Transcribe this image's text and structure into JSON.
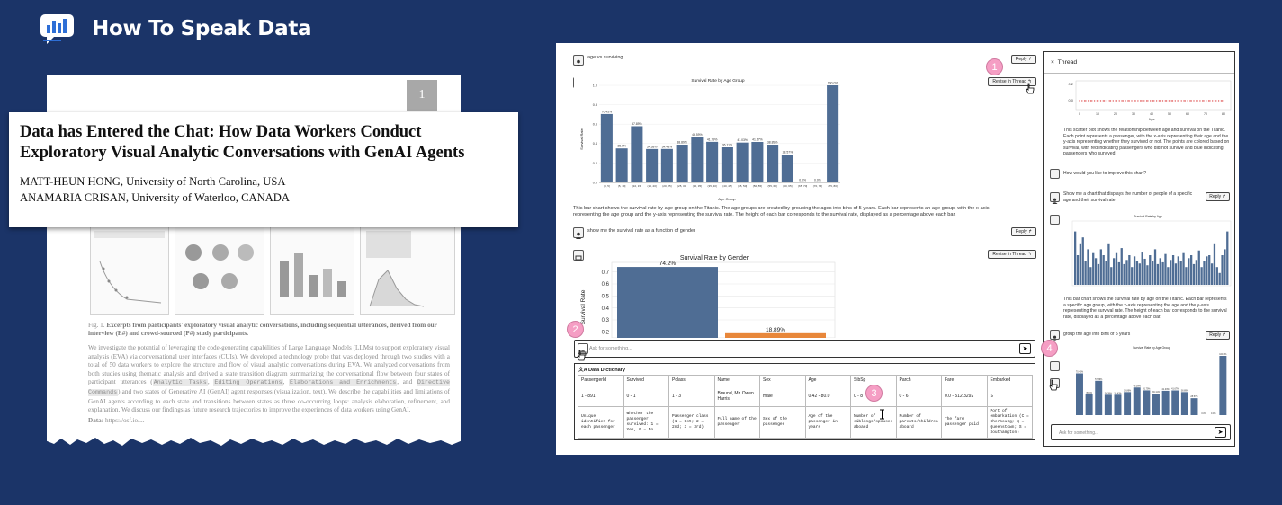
{
  "brand": {
    "title": "How To Speak Data"
  },
  "paper": {
    "page_number": "1",
    "title": "Data has Entered the Chat: How Data Workers Conduct Exploratory Visual Analytic Conversations with GenAI Agents",
    "author1_name": "MATT-HEUN HONG,",
    "author1_aff": " University of North Carolina, USA",
    "author2_name": "ANAMARIA CRISAN,",
    "author2_aff": " University of Waterloo, CANADA",
    "fig_label": "Fig. 1.",
    "fig_caption_bold": "Excerpts from participants' exploratory visual analytic conversations, including sequential utterances, derived from our interview (E#) and crowd-sourced (P#) study participants.",
    "abstract_1": "We investigate the potential of leveraging the code-generating capabilities of Large Language Models (LLMs) to support exploratory visual analysis (EVA) via conversational user interfaces (CUIs). We developed a technology probe that was deployed through two studies with a total of 50 data workers to explore the structure and flow of visual analytic conversations during EVA. We analyzed conversations from both studies using thematic analysis and derived a state transition diagram summarizing the conversational flow between four states of participant utterances (",
    "code1": "Analytic Tasks",
    "code2": "Editing Operations",
    "code3": "Elaborations and Enrichments",
    "abstract_and": ", and",
    "code4": "Directive Commands",
    "abstract_2": ") and two states of Generative AI (GenAI) agent responses (visualization, text). We describe the capabilities and limitations of GenAI agents according to each state and transitions between states as three co-occurring loops: analysis elaboration, refinement, and explanation. We discuss our findings as future research trajectories to improve the experiences of data workers using GenAI.",
    "data_line_label": "Data:",
    "data_line_value": " https://osf.io/..."
  },
  "app": {
    "msg1": "age vs surviving",
    "reply_label": "Reply",
    "revise_label": "Revise in Thread",
    "chart1_title": "Survival Rate by Age Group",
    "chart1_ylabel": "Survival Rate",
    "chart1_xlabel": "Age Group",
    "desc1": "This bar chart shows the survival rate by age group on the Titanic. The age groups are created by grouping the ages into bins of 5 years. Each bar represents an age group, with the x-axis representing the age group and the y-axis representing the survival rate. The height of each bar corresponds to the survival rate, displayed as a percentage above each bar.",
    "msg2": "show me the survival rate as a function of gender",
    "chart2_title": "Survival Rate by Gender",
    "chart2_ylabel": "Survival Rate",
    "input_placeholder": "Ask for something...",
    "send_icon": "send-arrow",
    "dd_title": "Data Dictionary",
    "dd_headers": [
      "PassengerId",
      "Survived",
      "Pclass",
      "Name",
      "Sex",
      "Age",
      "SibSp",
      "Parch",
      "Fare",
      "Embarked"
    ],
    "dd_ranges": [
      "1 - 891",
      "0 - 1",
      "1 - 3",
      "Braund, Mr. Owen Harris",
      "male",
      "0.42 - 80.0",
      "0 - 8",
      "0 - 6",
      "0.0 - 512.3292",
      "S"
    ],
    "dd_descriptions": [
      "Unique identifier for each passenger",
      "Whether the passenger survived: 1 = Yes, 0 = No",
      "Passenger class (1 = 1st; 2 = 2nd; 3 = 3rd)",
      "Full name of the passenger",
      "Sex of the passenger",
      "Age of the passenger in years",
      "Number of siblings/spouses aboard",
      "Number of parents/children aboard",
      "The fare passenger paid",
      "Port of embarkation (C = Cherbourg; Q = Queenstown; S = Southampton)"
    ]
  },
  "thread": {
    "title": "Thread",
    "close_label": "×",
    "scatter_xlabel": "Age",
    "scatter_yticks": [
      "0.2",
      "0.0"
    ],
    "scatter_xticks": [
      "0",
      "10",
      "20",
      "30",
      "40",
      "50",
      "60",
      "70",
      "80"
    ],
    "desc1": "This scatter plot shows the relationship between age and survival on the Titanic. Each point represents a passenger, with the x-axis representing their age and the y-axis representing whether they survived or not. The points are colored based on survival, with red indicating passengers who did not survive and blue indicating passengers who survived.",
    "q1": "How would you like to improve this chart?",
    "msg1": "Show me a chart that displays the number of people of a specific age and their survival rate",
    "chart_title": "Survival Rate by Age",
    "desc2": "This bar chart shows the survival rate by age on the Titanic. Each bar represents a specific age group, with the x-axis representing the age and the y-axis representing the survival rate. The height of each bar corresponds to the survival rate, displayed as a percentage above each bar.",
    "msg2": "group the age into bins of 5 years",
    "chart2_title": "Survival Rate by Age Group",
    "input_placeholder": "Ask for something..."
  },
  "callouts": [
    "1",
    "2",
    "3",
    "4"
  ],
  "colors": {
    "bar": "#4f6d94",
    "accent_orange": "#e8873a",
    "scatter_red": "#e05a5a",
    "callout": "#f59ec4",
    "background": "#1b3468"
  },
  "chart_data": [
    {
      "type": "bar",
      "title": "Survival Rate by Age Group",
      "xlabel": "Age Group",
      "ylabel": "Survival Rate",
      "ylim": [
        0,
        1.0
      ],
      "yticks": [
        0.0,
        0.2,
        0.4,
        0.6,
        0.8,
        1.0
      ],
      "categories": [
        "(0, 5]",
        "(5, 10]",
        "(10, 15]",
        "(15, 20]",
        "(20, 25]",
        "(25, 30]",
        "(30, 35]",
        "(35, 40]",
        "(40, 45]",
        "(45, 50]",
        "(50, 55]",
        "(55, 60]",
        "(60, 65]",
        "(65, 70]",
        "(70, 75]",
        "(75, 80]"
      ],
      "values": [
        0.7045,
        0.35,
        0.5789,
        0.3438,
        0.3443,
        0.3889,
        0.4659,
        0.4179,
        0.3611,
        0.4103,
        0.4167,
        0.3889,
        0.2857,
        0.0,
        0.0,
        1.0
      ],
      "labels": [
        "70.45%",
        "35.0%",
        "57.89%",
        "34.38%",
        "34.43%",
        "38.89%",
        "46.59%",
        "41.79%",
        "36.11%",
        "41.03%",
        "41.67%",
        "38.89%",
        "28.57%",
        "0.0%",
        "0.0%",
        "100.0%"
      ]
    },
    {
      "type": "bar",
      "title": "Survival Rate by Gender",
      "ylabel": "Survival Rate",
      "ylim": [
        0.15,
        0.78
      ],
      "yticks": [
        0.2,
        0.3,
        0.4,
        0.5,
        0.6,
        0.7
      ],
      "categories": [
        "female",
        "male"
      ],
      "values": [
        0.742,
        0.1889
      ],
      "labels": [
        "74.2%",
        "18.89%"
      ]
    }
  ]
}
